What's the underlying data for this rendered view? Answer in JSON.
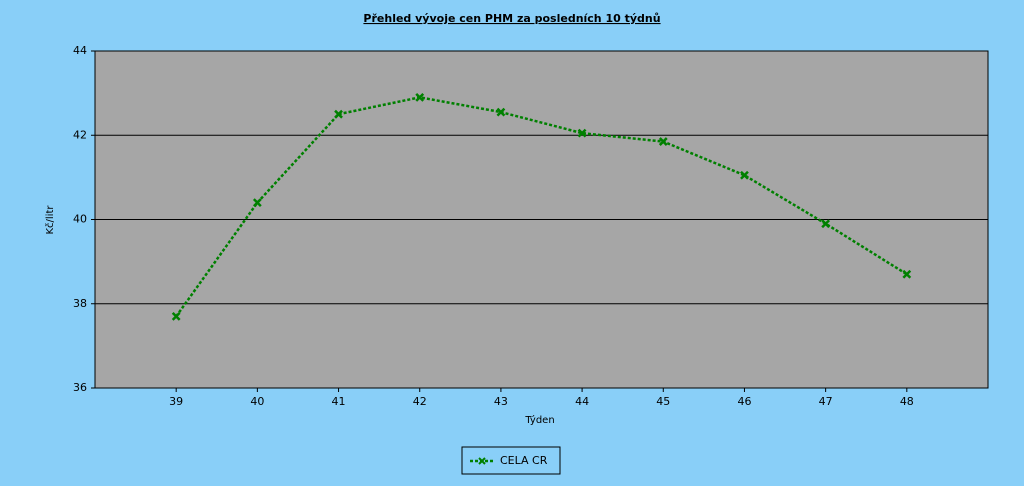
{
  "chart_data": {
    "type": "line",
    "title": "Přehled vývoje cen PHM za posledních 10 týdnů",
    "x_label": "Týden",
    "y_label": "Kč/litr",
    "x": [
      39,
      40,
      41,
      42,
      43,
      44,
      45,
      46,
      47,
      48
    ],
    "series": [
      {
        "name": "CELA CR",
        "color": "#008000",
        "values": [
          37.7,
          40.4,
          42.5,
          42.9,
          42.55,
          42.05,
          41.85,
          41.05,
          39.9,
          38.7
        ]
      }
    ],
    "xlim": [
      38,
      49
    ],
    "xticks": [
      39,
      40,
      41,
      42,
      43,
      44,
      45,
      46,
      47,
      48
    ],
    "ylim": [
      36,
      44
    ],
    "yticks": [
      36,
      38,
      40,
      42,
      44
    ],
    "grid": true,
    "legend": "bottom"
  }
}
